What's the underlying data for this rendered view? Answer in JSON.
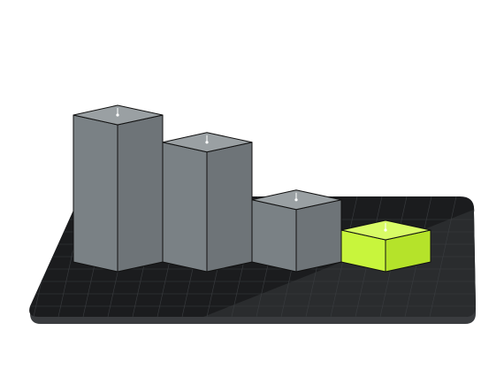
{
  "chart_data": {
    "type": "bar",
    "style": "3d-isometric",
    "categories": [
      "",
      "",
      "",
      ""
    ],
    "values": [
      100,
      82,
      44,
      24
    ],
    "ylim": [
      0,
      100
    ],
    "grid": true,
    "legend": "none",
    "highlight_index": 3
  },
  "colors": {
    "bar_front": "#7a8185",
    "bar_side": "#6e7478",
    "bar_top": "#9aa0a3",
    "highlight_front": "#c8f53c",
    "highlight_side": "#b5e32a",
    "highlight_top": "#d8fb66",
    "edge": "#111111",
    "platform": "#1b1c1e",
    "platform_light": "#2a2c2e",
    "platform_edge": "#3a3c3f",
    "grid": "#3a3d40",
    "marker": "#ffffff"
  }
}
